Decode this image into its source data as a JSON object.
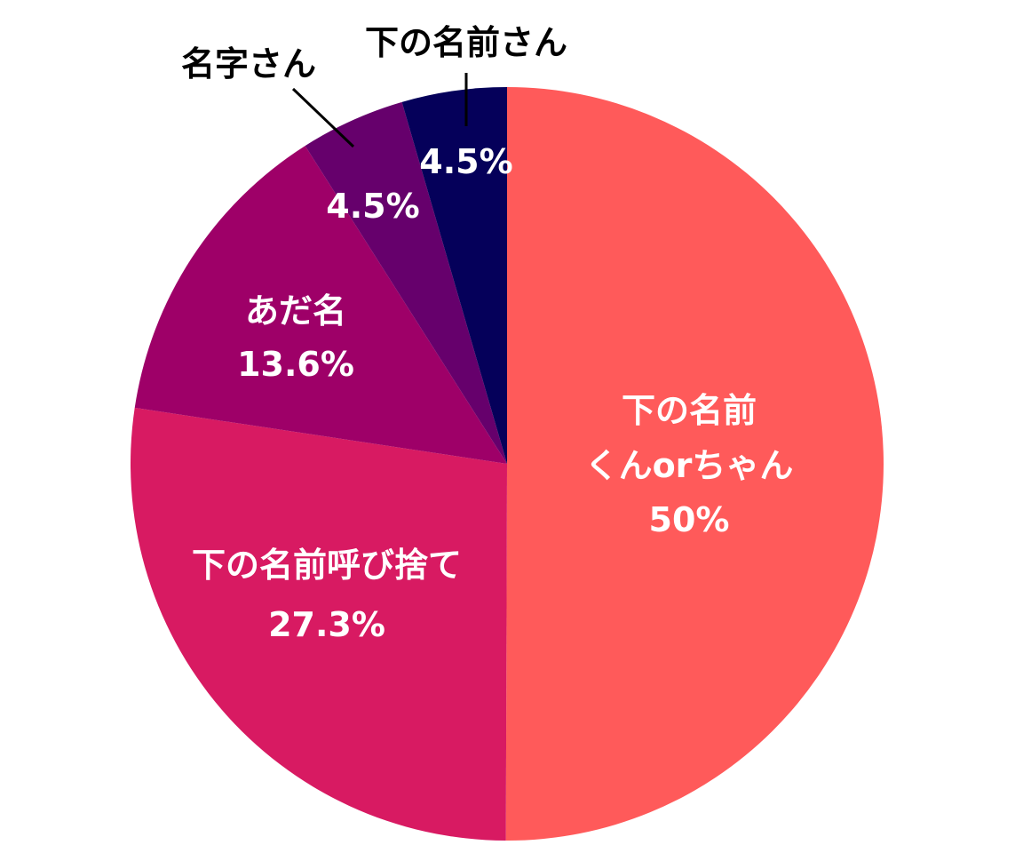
{
  "chart_data": {
    "type": "pie",
    "categories": [
      "下の名前\nくんorちゃん",
      "下の名前呼び捨て",
      "あだ名",
      "名字さん",
      "下の名前さん"
    ],
    "values": [
      50,
      27.3,
      13.6,
      4.5,
      4.5
    ],
    "value_labels": [
      "50%",
      "27.3%",
      "13.6%",
      "4.5%",
      "4.5%"
    ],
    "colors": [
      "#ff5a5a",
      "#d81a62",
      "#9e0068",
      "#66006c",
      "#05005a"
    ]
  }
}
